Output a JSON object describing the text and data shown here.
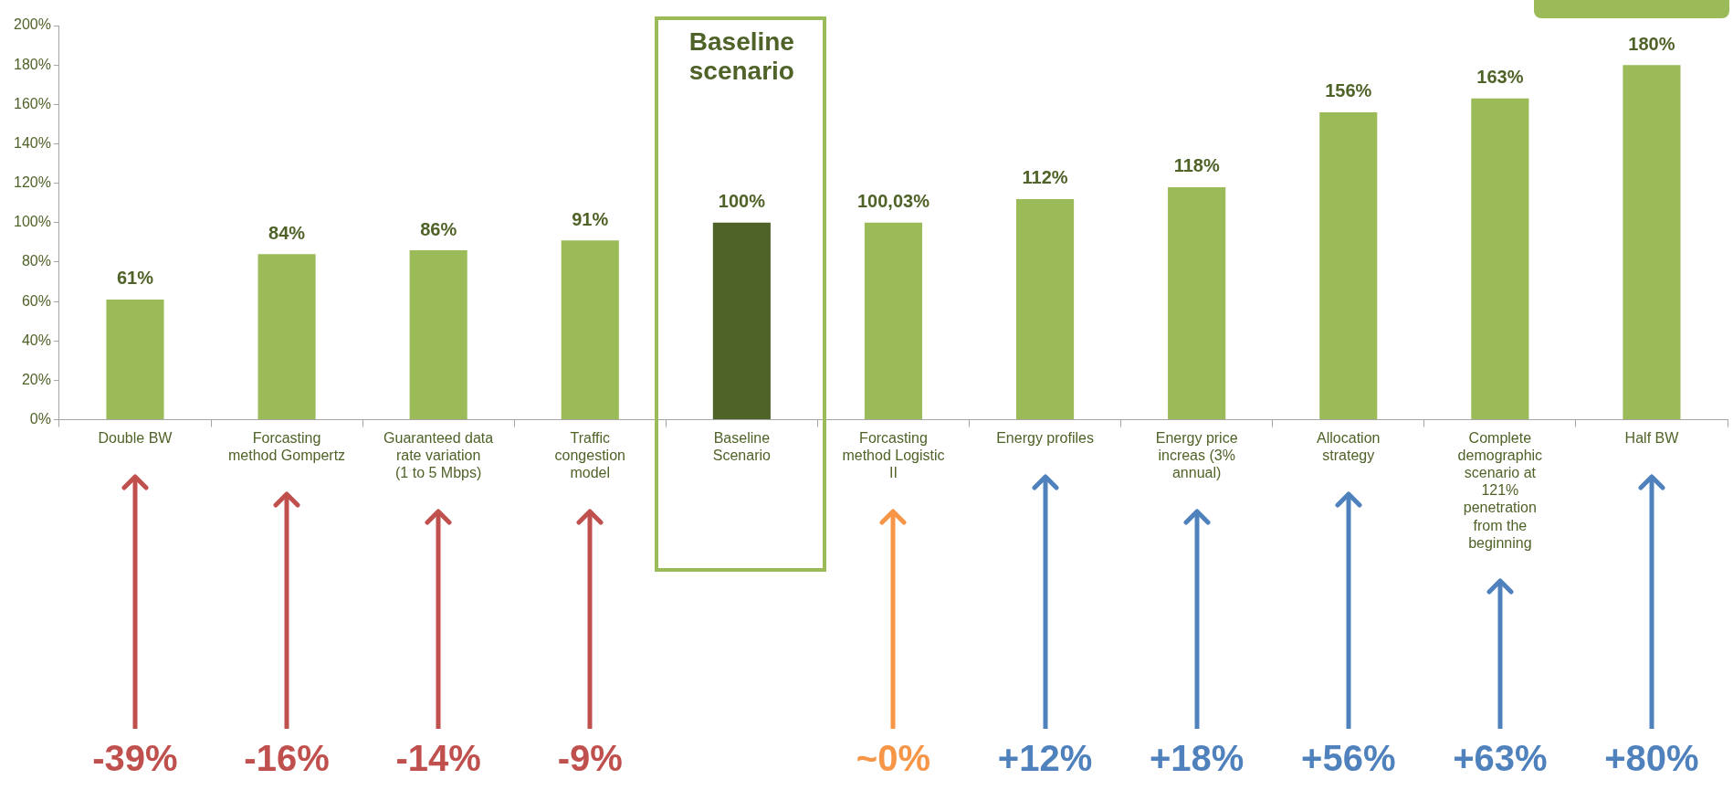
{
  "chart_data": {
    "type": "bar",
    "categories": [
      "Double BW",
      "Forcasting method Gompertz",
      "Guaranteed data rate variation (1 to 5 Mbps)",
      "Traffic congestion model",
      "Baseline Scenario",
      "Forcasting method Logistic II",
      "Energy profiles",
      "Energy price increas (3% annual)",
      "Allocation strategy",
      "Complete demographic scenario at 121% penetration from the beginning",
      "Half BW"
    ],
    "values": [
      61,
      84,
      86,
      91,
      100,
      100.03,
      112,
      118,
      156,
      163,
      180
    ],
    "colors": [
      "#9bbb59",
      "#9bbb59",
      "#9bbb59",
      "#9bbb59",
      "#4f6228",
      "#9bbb59",
      "#9bbb59",
      "#9bbb59",
      "#9bbb59",
      "#9bbb59",
      "#9bbb59"
    ],
    "value_labels": [
      "61%",
      "84%",
      "86%",
      "91%",
      "100%",
      "100,03%",
      "112%",
      "118%",
      "156%",
      "163%",
      "180%"
    ],
    "ylim": [
      0,
      200
    ],
    "yticks": [
      {
        "value": 0,
        "label": "0%"
      },
      {
        "value": 20,
        "label": "20%"
      },
      {
        "value": 40,
        "label": "40%"
      },
      {
        "value": 60,
        "label": "60%"
      },
      {
        "value": 80,
        "label": "80%"
      },
      {
        "value": 100,
        "label": "100%"
      },
      {
        "value": 120,
        "label": "120%"
      },
      {
        "value": 140,
        "label": "140%"
      },
      {
        "value": 160,
        "label": "160%"
      },
      {
        "value": 180,
        "label": "180%"
      },
      {
        "value": 200,
        "label": "200%"
      }
    ],
    "grid": false,
    "legend": false,
    "annotations": [
      "-39%",
      "-16%",
      "-14%",
      "-9%",
      "Baseline scenario",
      "~0%",
      "+12%",
      "+18%",
      "+56%",
      "+63%",
      "+80%"
    ]
  }
}
